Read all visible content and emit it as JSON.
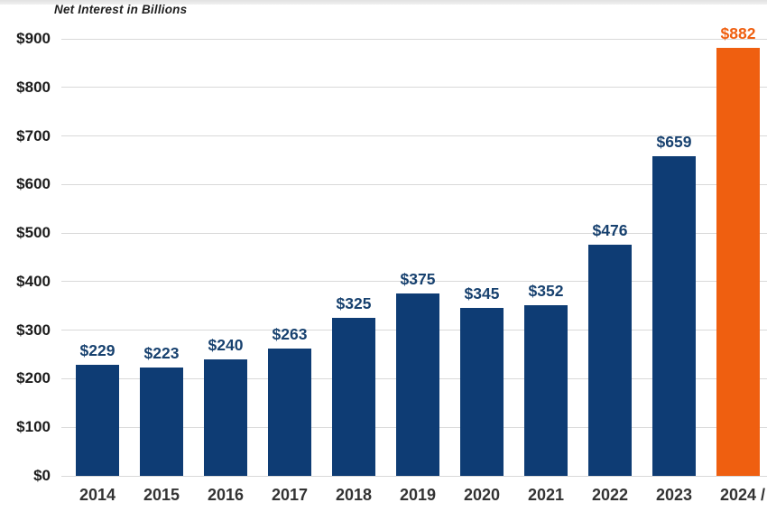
{
  "chart_data": {
    "type": "bar",
    "title": "Net Interest in Billions",
    "categories": [
      "2014",
      "2015",
      "2016",
      "2017",
      "2018",
      "2019",
      "2020",
      "2021",
      "2022",
      "2023",
      "2024"
    ],
    "values": [
      229,
      223,
      240,
      263,
      325,
      375,
      345,
      352,
      476,
      659,
      882
    ],
    "bar_labels": [
      "$229",
      "$223",
      "$240",
      "$263",
      "$325",
      "$375",
      "$345",
      "$352",
      "$476",
      "$659",
      "$882"
    ],
    "y_ticks": [
      0,
      100,
      200,
      300,
      400,
      500,
      600,
      700,
      800,
      900
    ],
    "y_tick_labels": [
      "$0",
      "$100",
      "$200",
      "$300",
      "$400",
      "$500",
      "$600",
      "$700",
      "$800",
      "$900"
    ],
    "ylim": [
      0,
      900
    ],
    "grid": true,
    "legend_position": "none",
    "highlight_index": 10,
    "x_axis_cutoff_mark": "/",
    "colors": {
      "bar": "#0e3c74",
      "highlight_bar": "#ef5f10",
      "bar_label": "#17416f",
      "highlight_bar_label": "#ef5f10",
      "y_tick_text": "#1c1c1c",
      "x_tick_text": "#333333",
      "gridline": "#d9d9d9",
      "title_text": "#1f1f1f"
    }
  }
}
